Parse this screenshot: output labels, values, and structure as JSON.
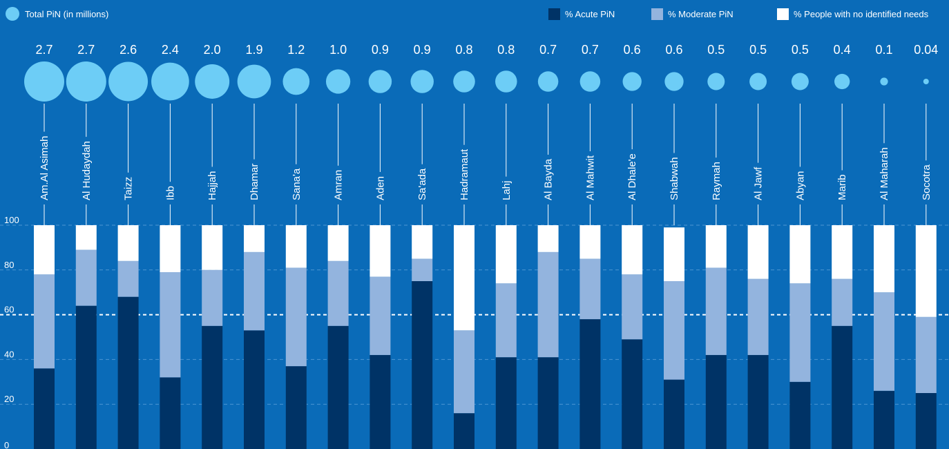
{
  "colors": {
    "background": "#0a6bb8",
    "bubble": "#6dcdf6",
    "acute": "#003366",
    "moderate": "#93b4de",
    "none": "#ffffff",
    "grid": "#4d97d2"
  },
  "chart_data": {
    "type": "bar",
    "stacked": true,
    "legend": {
      "bubble_label": "Total PiN (in millions)",
      "series_labels": [
        "% Acute PiN",
        "% Moderate PiN",
        "% People with no identified needs"
      ]
    },
    "categories": [
      "Am.Al Asimah",
      "Al Hudaydah",
      "Taizz",
      "Ibb",
      "Hajjah",
      "Dhamar",
      "Sana'a",
      "Amran",
      "Aden",
      "Sa'ada",
      "Hadramaut",
      "Lahj",
      "Al Bayda",
      "Al Mahwit",
      "Al Dhale'e",
      "Shabwah",
      "Raymah",
      "Al Jawf",
      "Abyan",
      "Marib",
      "Al Maharah",
      "Socotra"
    ],
    "total_pin_labels": [
      "2.7",
      "2.7",
      "2.6",
      "2.4",
      "2.0",
      "1.9",
      "1.2",
      "1.0",
      "0.9",
      "0.9",
      "0.8",
      "0.8",
      "0.7",
      "0.7",
      "0.6",
      "0.6",
      "0.5",
      "0.5",
      "0.5",
      "0.4",
      "0.1",
      "0.04"
    ],
    "total_pin": [
      2.7,
      2.7,
      2.6,
      2.4,
      2.0,
      1.9,
      1.2,
      1.0,
      0.9,
      0.9,
      0.8,
      0.8,
      0.7,
      0.7,
      0.6,
      0.6,
      0.5,
      0.5,
      0.5,
      0.4,
      0.1,
      0.04
    ],
    "series": [
      {
        "name": "% Acute PiN",
        "values": [
          36,
          64,
          68,
          32,
          55,
          53,
          37,
          55,
          42,
          75,
          16,
          41,
          41,
          58,
          49,
          31,
          42,
          42,
          30,
          55,
          26,
          25
        ]
      },
      {
        "name": "% Moderate PiN",
        "values": [
          42,
          25,
          16,
          47,
          25,
          35,
          44,
          29,
          35,
          10,
          37,
          33,
          47,
          27,
          29,
          44,
          39,
          34,
          44,
          21,
          44,
          34
        ]
      },
      {
        "name": "% People with no identified needs",
        "values": [
          22,
          11,
          16,
          21,
          20,
          12,
          19,
          16,
          23,
          15,
          47,
          26,
          12,
          15,
          22,
          24,
          19,
          24,
          26,
          24,
          30,
          41
        ]
      }
    ],
    "y_ticks": [
      "0",
      "20",
      "40",
      "60",
      "80",
      "100"
    ],
    "ylim": [
      0,
      100
    ],
    "grid": true
  }
}
